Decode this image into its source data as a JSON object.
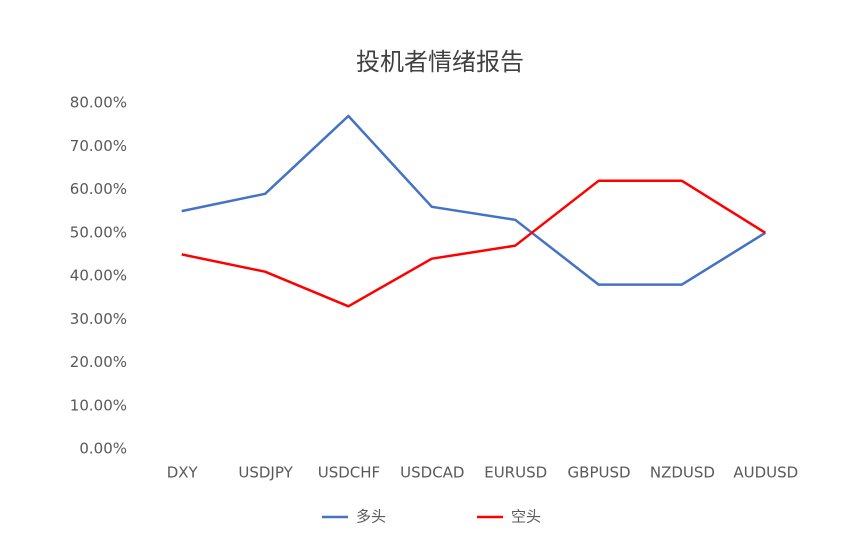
{
  "chart_data": {
    "type": "line",
    "title": "投机者情绪报告",
    "categories": [
      "DXY",
      "USDJPY",
      "USDCHF",
      "USDCAD",
      "EURUSD",
      "GBPUSD",
      "NZDUSD",
      "AUDUSD"
    ],
    "series": [
      {
        "name": "多头",
        "color": "#4472c4",
        "values": [
          55,
          59,
          77,
          56,
          53,
          38,
          38,
          50
        ]
      },
      {
        "name": "空头",
        "color": "#ff0000",
        "values": [
          45,
          41,
          33,
          44,
          47,
          62,
          62,
          50
        ]
      }
    ],
    "ylim": [
      0,
      80
    ],
    "yticks": [
      {
        "value": 0,
        "label": "0.00%"
      },
      {
        "value": 10,
        "label": "10.00%"
      },
      {
        "value": 20,
        "label": "20.00%"
      },
      {
        "value": 30,
        "label": "30.00%"
      },
      {
        "value": 40,
        "label": "40.00%"
      },
      {
        "value": 50,
        "label": "50.00%"
      },
      {
        "value": 60,
        "label": "60.00%"
      },
      {
        "value": 70,
        "label": "70.00%"
      },
      {
        "value": 80,
        "label": "80.00%"
      }
    ],
    "grid": false,
    "legend": "bottom"
  }
}
